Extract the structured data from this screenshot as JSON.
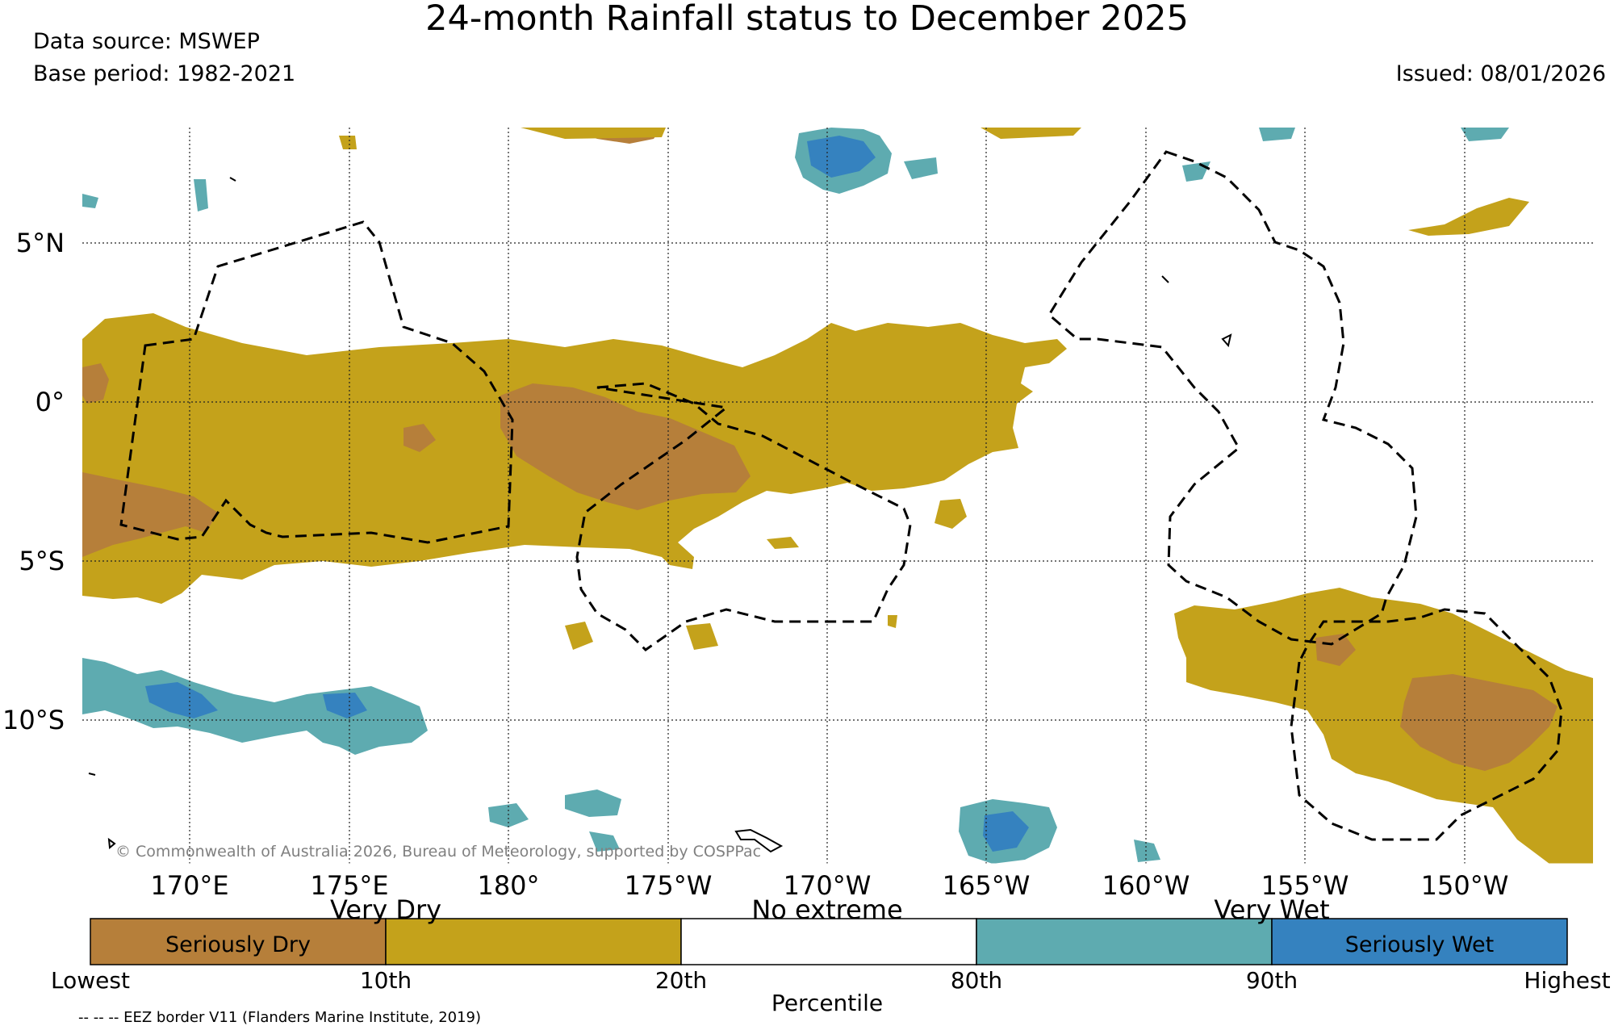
{
  "title": "24-month Rainfall status to December 2025",
  "data_source": "Data source: MSWEP",
  "base_period": "Base period: 1982-2021",
  "issued": "Issued: 08/01/2026",
  "map": {
    "longitude_labels": [
      "170°E",
      "175°E",
      "180°",
      "175°W",
      "170°W",
      "165°W",
      "160°W",
      "155°W",
      "150°W"
    ],
    "latitude_labels": [
      "5°N",
      "0°",
      "5°S",
      "10°S"
    ],
    "copyright": "© Commonwealth of Australia 2026, Bureau of Meteorology, supported by COSPPac"
  },
  "colorbar": {
    "label": "Percentile",
    "categories_top": [
      "Very Dry",
      "No extreme",
      "Very Wet"
    ],
    "categories_inside": [
      "Seriously Dry",
      "Seriously Wet"
    ],
    "ticks": [
      "Lowest",
      "10th",
      "20th",
      "80th",
      "90th",
      "Highest"
    ],
    "colors": {
      "seriously_dry": "#b67f3a",
      "very_dry": "#c4a21b",
      "no_extreme": "#ffffff",
      "very_wet": "#5eabb0",
      "seriously_wet": "#3582bf"
    }
  },
  "eez_note": "-- -- -- EEZ border V11 (Flanders Marine Institute, 2019)"
}
